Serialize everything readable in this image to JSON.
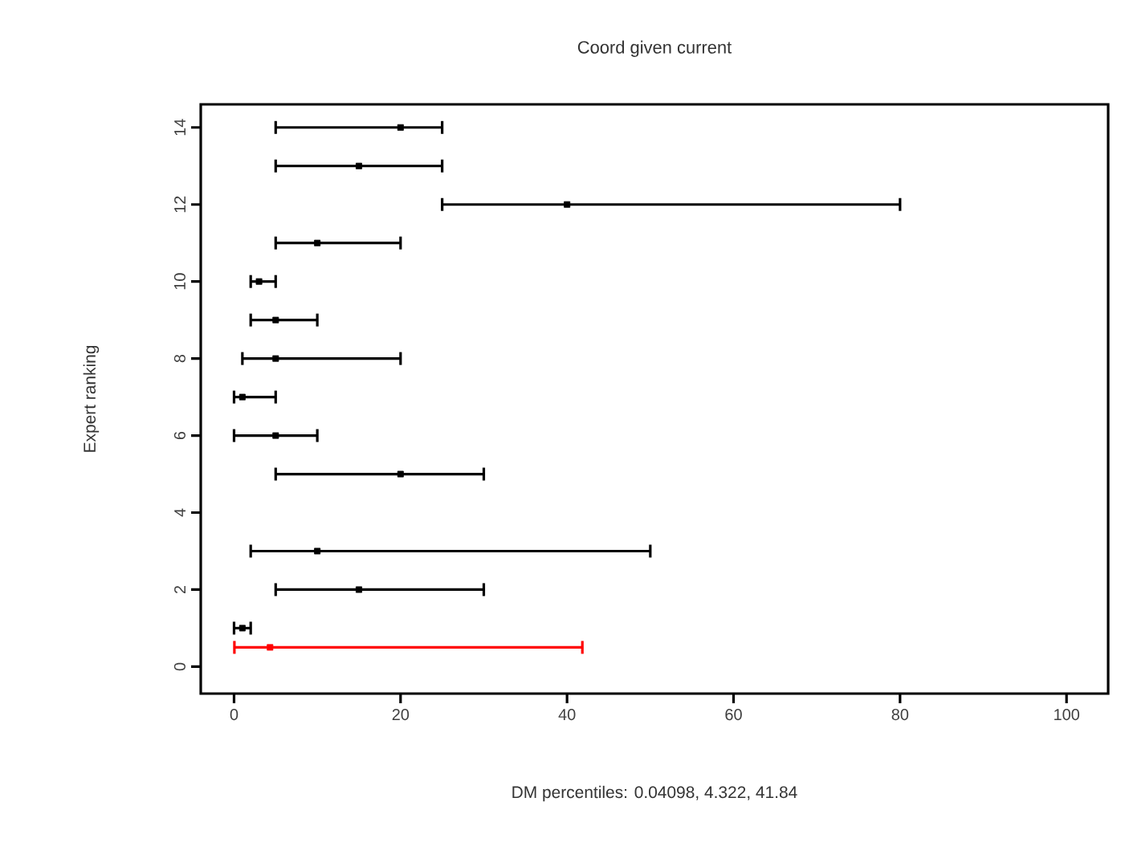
{
  "chart_data": {
    "type": "scatter",
    "title": "Coord given current",
    "xlabel": "DM percentiles: 0.04098,  4.322,  41.84",
    "ylabel": "Expert ranking",
    "xlim": [
      -4,
      105
    ],
    "xticks": [
      0,
      20,
      40,
      60,
      80,
      100
    ],
    "ylim": [
      -0.7,
      14.6
    ],
    "yticks": [
      0,
      2,
      4,
      6,
      8,
      10,
      12,
      14
    ],
    "marker": "square",
    "grid": false,
    "series": [
      {
        "color": "#000000",
        "x": [
          1,
          15,
          10,
          20,
          5,
          1,
          5,
          5,
          3,
          10,
          40,
          15,
          20
        ],
        "values": [
          1,
          2,
          3,
          5,
          6,
          7,
          8,
          9,
          10,
          11,
          12,
          13,
          14
        ],
        "xerrors": [
          [
            0,
            2
          ],
          [
            5,
            30
          ],
          [
            2,
            50
          ],
          [
            5,
            30
          ],
          [
            0,
            10
          ],
          [
            0,
            5
          ],
          [
            1,
            20
          ],
          [
            2,
            10
          ],
          [
            2,
            5
          ],
          [
            5,
            20
          ],
          [
            25,
            80
          ],
          [
            5,
            25
          ],
          [
            5,
            25
          ]
        ]
      },
      {
        "color": "#ff0000",
        "x": [
          4.322
        ],
        "values": [
          0.5
        ],
        "xerrors": [
          [
            0.04098,
            41.84
          ]
        ]
      }
    ]
  }
}
